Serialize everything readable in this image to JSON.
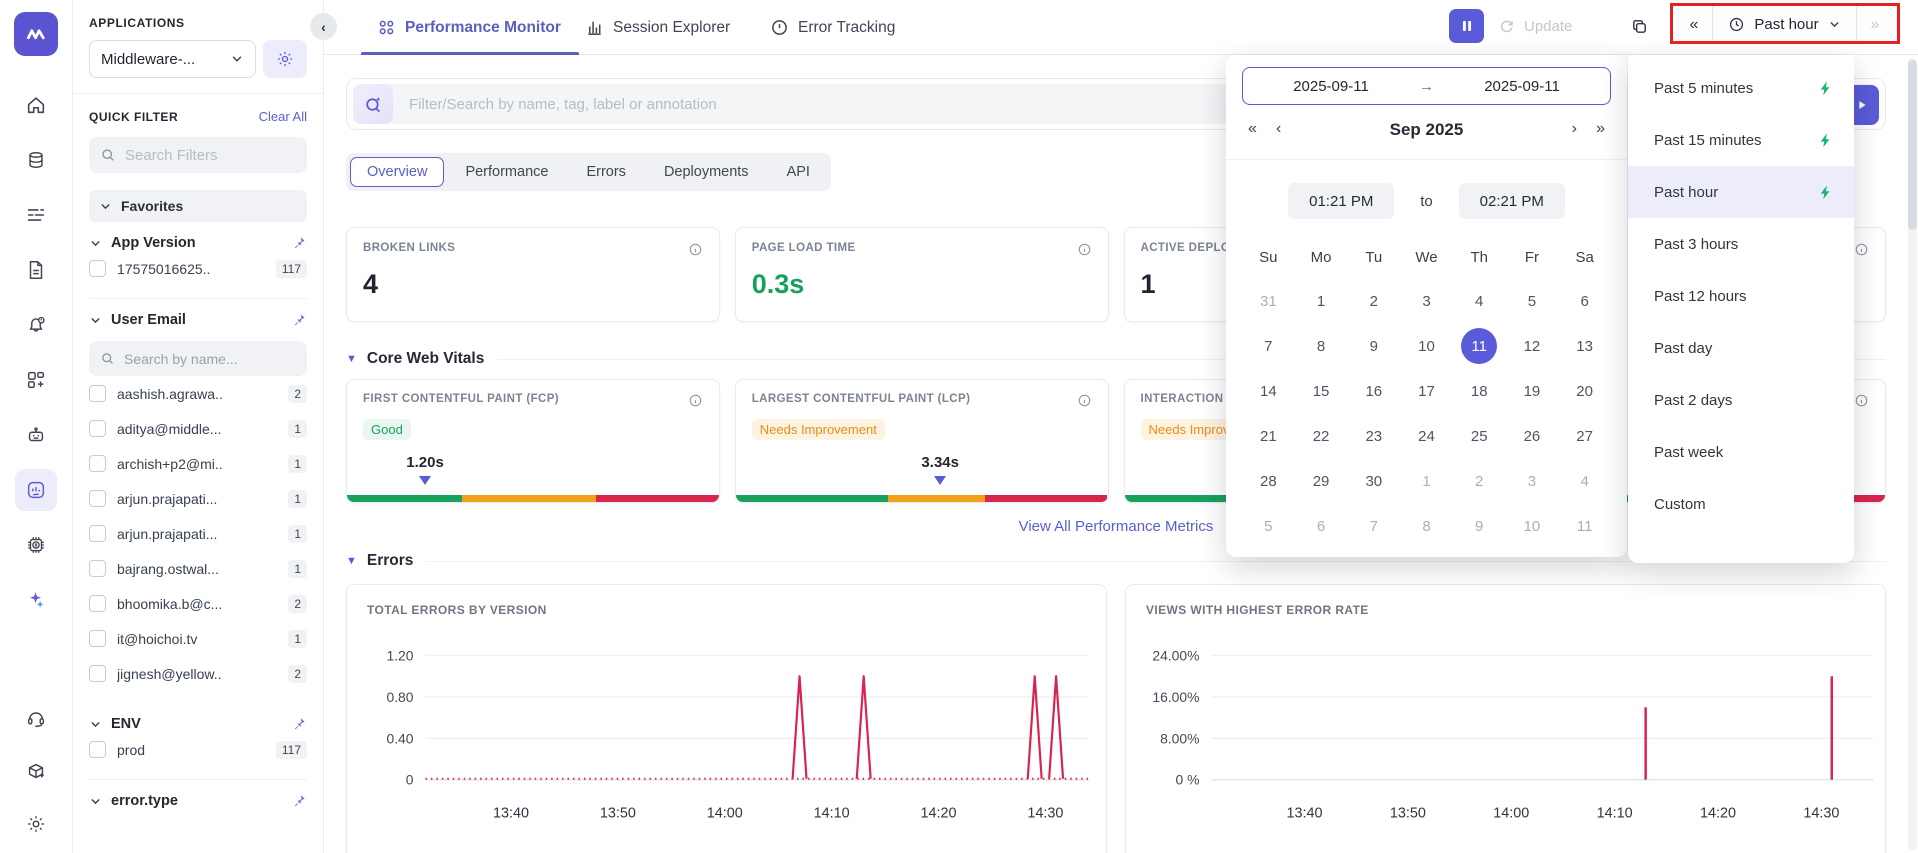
{
  "colors": {
    "accent": "#5a5bd8",
    "green": "#17a05e",
    "orange": "#f0a117",
    "red": "#d8254e",
    "annotation": "#e52222"
  },
  "sidebar": {
    "top_icons": [
      "home-icon",
      "data-sources-icon",
      "logs-icon",
      "reports-icon",
      "alerts-icon",
      "dashboards-icon",
      "bot-icon",
      "rum-icon",
      "infra-cost-icon",
      "ai-sparkle-icon"
    ],
    "active_icon": "rum-icon",
    "bottom_icons": [
      "support-headset-icon",
      "integrations-icon",
      "settings-gear-icon"
    ]
  },
  "apps_panel": {
    "title": "APPLICATIONS",
    "selected_app": "Middleware-..."
  },
  "quick_filter": {
    "title": "QUICK FILTER",
    "clear_all": "Clear All",
    "search_placeholder": "Search Filters",
    "favorites_label": "Favorites",
    "groups": [
      {
        "label": "App Version",
        "pinned": true,
        "items": [
          {
            "label": "17575016625..",
            "count": "117"
          }
        ]
      },
      {
        "label": "User Email",
        "pinned": true,
        "search_placeholder": "Search by name...",
        "items": [
          {
            "label": "aashish.agrawa..",
            "count": "2"
          },
          {
            "label": "aditya@middle...",
            "count": "1"
          },
          {
            "label": "archish+p2@mi..",
            "count": "1"
          },
          {
            "label": "arjun.prajapati...",
            "count": "1"
          },
          {
            "label": "arjun.prajapati...",
            "count": "1"
          },
          {
            "label": "bajrang.ostwal...",
            "count": "1"
          },
          {
            "label": "bhoomika.b@c...",
            "count": "2"
          },
          {
            "label": "it@hoichoi.tv",
            "count": "1"
          },
          {
            "label": "jignesh@yellow..",
            "count": "2"
          }
        ]
      },
      {
        "label": "ENV",
        "pinned": true,
        "items": [
          {
            "label": "prod",
            "count": "117"
          }
        ]
      },
      {
        "label": "error.type",
        "pinned": true,
        "items": []
      }
    ]
  },
  "topbar": {
    "tabs": [
      {
        "label": "Performance Monitor",
        "active": true
      },
      {
        "label": "Session Explorer",
        "active": false
      },
      {
        "label": "Error Tracking",
        "active": false
      }
    ],
    "update_label": "Update",
    "time_range_label": "Past hour"
  },
  "filter_bar": {
    "placeholder": "Filter/Search by name, tag, label or annotation"
  },
  "view_tabs": {
    "items": [
      "Overview",
      "Performance",
      "Errors",
      "Deployments",
      "API"
    ],
    "active": "Overview"
  },
  "metric_cards": [
    {
      "label": "BROKEN LINKS",
      "value": "4",
      "value_color": "#20242e"
    },
    {
      "label": "PAGE LOAD TIME",
      "value": "0.3s",
      "value_color": "#17a05e"
    },
    {
      "label": "ACTIVE DEPLOYMENT",
      "value": "1",
      "value_color": "#20242e"
    },
    {
      "label": "",
      "value": "",
      "value_color": "#20242e"
    }
  ],
  "core_web_vitals": {
    "section_title": "Core Web Vitals",
    "view_all_label": "View All Performance Metrics",
    "cards": [
      {
        "label": "FIRST CONTENTFUL PAINT (FCP)",
        "badge": "Good",
        "badge_type": "good",
        "value": "1.20s",
        "marker_pct": 21,
        "segments": [
          [
            "#17a05e",
            31
          ],
          [
            "#f0a117",
            36
          ],
          [
            "#d8254e",
            33
          ]
        ]
      },
      {
        "label": "LARGEST CONTENTFUL PAINT (LCP)",
        "badge": "Needs Improvement",
        "badge_type": "warn",
        "value": "3.34s",
        "marker_pct": 55,
        "segments": [
          [
            "#17a05e",
            41
          ],
          [
            "#f0a117",
            26
          ],
          [
            "#d8254e",
            33
          ]
        ]
      },
      {
        "label": "INTERACTION TO NEXT PAINT (INP)",
        "badge": "Needs Improvement",
        "badge_type": "warn",
        "value": "",
        "marker_pct": null,
        "segments": [
          [
            "#17a05e",
            41
          ],
          [
            "#f0a117",
            26
          ],
          [
            "#d8254e",
            33
          ]
        ]
      },
      {
        "label": "",
        "badge": "",
        "badge_type": "",
        "value": "",
        "marker_pct": null,
        "segments": [
          [
            "#17a05e",
            41
          ],
          [
            "#f0a117",
            26
          ],
          [
            "#d8254e",
            33
          ]
        ]
      }
    ]
  },
  "errors_section": {
    "title": "Errors"
  },
  "chart_data": [
    {
      "type": "line",
      "title": "TOTAL ERRORS BY VERSION",
      "color": "#d8254e",
      "x_domain": [
        "13:32",
        "14:34"
      ],
      "xticks": [
        "13:40",
        "13:50",
        "14:00",
        "14:10",
        "14:20",
        "14:30"
      ],
      "yticks": [
        {
          "v": 0,
          "label": "0"
        },
        {
          "v": 0.4,
          "label": "0.40"
        },
        {
          "v": 0.8,
          "label": "0.80"
        },
        {
          "v": 1.2,
          "label": "1.20"
        }
      ],
      "ylim": [
        0,
        1.38
      ],
      "baseline_value": 0,
      "baseline_style": "dotted",
      "spikes": [
        {
          "t": "14:07",
          "v": 1.0
        },
        {
          "t": "14:13",
          "v": 1.0
        },
        {
          "t": "14:29",
          "v": 1.0
        },
        {
          "t": "14:31",
          "v": 1.0
        }
      ]
    },
    {
      "type": "bar",
      "title": "VIEWS WITH HIGHEST ERROR RATE",
      "color": "#d8254e",
      "x_domain": [
        "13:31",
        "14:35"
      ],
      "xticks": [
        "13:40",
        "13:50",
        "14:00",
        "14:10",
        "14:20",
        "14:30"
      ],
      "yticks": [
        {
          "v": 0,
          "label": "0 %"
        },
        {
          "v": 8,
          "label": "8.00%"
        },
        {
          "v": 16,
          "label": "16.00%"
        },
        {
          "v": 24,
          "label": "24.00%"
        }
      ],
      "ylim": [
        0,
        27.5
      ],
      "bars": [
        {
          "t": "14:13",
          "v": 14
        },
        {
          "t": "14:31",
          "v": 20
        }
      ]
    }
  ],
  "datetime_popup": {
    "start_date": "2025-09-11",
    "end_date": "2025-09-11",
    "month_label": "Sep 2025",
    "start_time": "01:21 PM",
    "to_label": "to",
    "end_time": "02:21 PM",
    "weekdays": [
      "Su",
      "Mo",
      "Tu",
      "We",
      "Th",
      "Fr",
      "Sa"
    ],
    "weeks": [
      [
        {
          "d": "31",
          "out": true
        },
        {
          "d": "1"
        },
        {
          "d": "2"
        },
        {
          "d": "3"
        },
        {
          "d": "4"
        },
        {
          "d": "5"
        },
        {
          "d": "6"
        }
      ],
      [
        {
          "d": "7"
        },
        {
          "d": "8"
        },
        {
          "d": "9"
        },
        {
          "d": "10"
        },
        {
          "d": "11",
          "sel": true
        },
        {
          "d": "12"
        },
        {
          "d": "13"
        }
      ],
      [
        {
          "d": "14"
        },
        {
          "d": "15"
        },
        {
          "d": "16"
        },
        {
          "d": "17"
        },
        {
          "d": "18"
        },
        {
          "d": "19"
        },
        {
          "d": "20"
        }
      ],
      [
        {
          "d": "21"
        },
        {
          "d": "22"
        },
        {
          "d": "23"
        },
        {
          "d": "24"
        },
        {
          "d": "25"
        },
        {
          "d": "26"
        },
        {
          "d": "27"
        }
      ],
      [
        {
          "d": "28"
        },
        {
          "d": "29"
        },
        {
          "d": "30"
        },
        {
          "d": "1",
          "out": true
        },
        {
          "d": "2",
          "out": true
        },
        {
          "d": "3",
          "out": true
        },
        {
          "d": "4",
          "out": true
        }
      ],
      [
        {
          "d": "5",
          "out": true
        },
        {
          "d": "6",
          "out": true
        },
        {
          "d": "7",
          "out": true
        },
        {
          "d": "8",
          "out": true
        },
        {
          "d": "9",
          "out": true
        },
        {
          "d": "10",
          "out": true
        },
        {
          "d": "11",
          "out": true
        }
      ]
    ]
  },
  "time_dropdown": {
    "items": [
      {
        "label": "Past 5 minutes",
        "live": true
      },
      {
        "label": "Past 15 minutes",
        "live": true
      },
      {
        "label": "Past hour",
        "live": true,
        "active": true
      },
      {
        "label": "Past 3 hours"
      },
      {
        "label": "Past 12 hours"
      },
      {
        "label": "Past day"
      },
      {
        "label": "Past 2 days"
      },
      {
        "label": "Past week"
      },
      {
        "label": "Custom"
      }
    ]
  },
  "annotation": {
    "type": "highlight-box",
    "target": "time-range-selector",
    "color": "#e52222"
  }
}
